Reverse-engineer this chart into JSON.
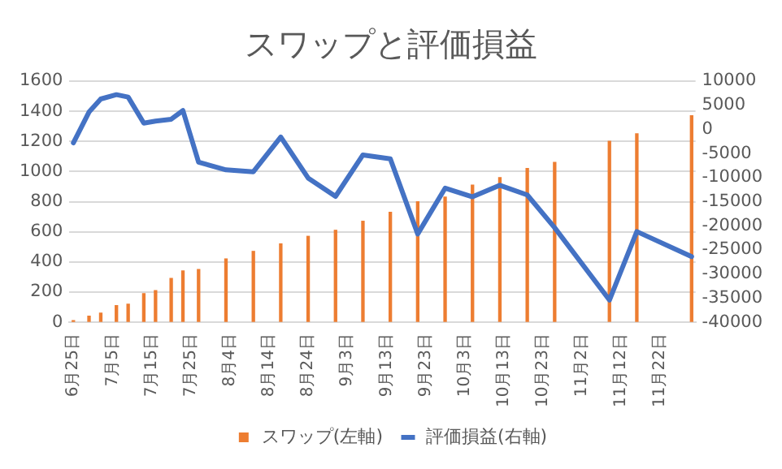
{
  "chart_data": {
    "type": "bar",
    "title": "スワップと評価損益",
    "x": [
      "--06-25",
      "--06-29",
      "--07-02",
      "--07-06",
      "--07-09",
      "--07-13",
      "--07-16",
      "--07-20",
      "--07-23",
      "--07-27",
      "--08-03",
      "--08-10",
      "--08-17",
      "--08-24",
      "--08-31",
      "--09-07",
      "--09-14",
      "--09-21",
      "--09-28",
      "--10-05",
      "--10-12",
      "--10-19",
      "--10-26",
      "--11-09",
      "--11-16",
      "--11-30"
    ],
    "xlim": [
      "--06-24",
      "--12-01"
    ],
    "xticks": [
      {
        "value": "--06-25",
        "label": "6月25日"
      },
      {
        "value": "--07-05",
        "label": "7月5日"
      },
      {
        "value": "--07-15",
        "label": "7月15日"
      },
      {
        "value": "--07-25",
        "label": "7月25日"
      },
      {
        "value": "--08-04",
        "label": "8月4日"
      },
      {
        "value": "--08-14",
        "label": "8月14日"
      },
      {
        "value": "--08-24",
        "label": "8月24日"
      },
      {
        "value": "--09-03",
        "label": "9月3日"
      },
      {
        "value": "--09-13",
        "label": "9月13日"
      },
      {
        "value": "--09-23",
        "label": "9月23日"
      },
      {
        "value": "--10-03",
        "label": "10月3日"
      },
      {
        "value": "--10-13",
        "label": "10月13日"
      },
      {
        "value": "--10-23",
        "label": "10月23日"
      },
      {
        "value": "--11-02",
        "label": "11月2日"
      },
      {
        "value": "--11-12",
        "label": "11月12日"
      },
      {
        "value": "--11-22",
        "label": "11月22日"
      }
    ],
    "ylim": [
      0,
      1600
    ],
    "yticks": [
      0,
      200,
      400,
      600,
      800,
      1000,
      1200,
      1400,
      1600
    ],
    "y2lim": [
      -40000,
      10000
    ],
    "y2ticks": [
      -40000,
      -35000,
      -30000,
      -25000,
      -20000,
      -15000,
      -10000,
      -5000,
      0,
      5000,
      10000
    ],
    "series": [
      {
        "name": "スワップ(左軸)",
        "color": "#ed7d31",
        "values": [
          10,
          40,
          60,
          110,
          120,
          190,
          210,
          290,
          340,
          350,
          420,
          470,
          520,
          570,
          610,
          670,
          730,
          800,
          830,
          910,
          960,
          1020,
          1060,
          1200,
          1250,
          1370
        ]
      },
      {
        "name": "評価損益(右軸)",
        "type": "line",
        "axis": "y2",
        "color": "#4472c4",
        "values": [
          -2800,
          3600,
          6300,
          7200,
          6700,
          1300,
          1700,
          2100,
          3900,
          -6800,
          -8400,
          -8800,
          -1600,
          -10100,
          -13900,
          -5300,
          -6100,
          -21700,
          -12200,
          -14000,
          -11600,
          -13600,
          -20400,
          -35400,
          -21200,
          -26400
        ]
      }
    ],
    "grid": "y",
    "legend": "bottom",
    "marker": "none",
    "line_style": "solid"
  }
}
